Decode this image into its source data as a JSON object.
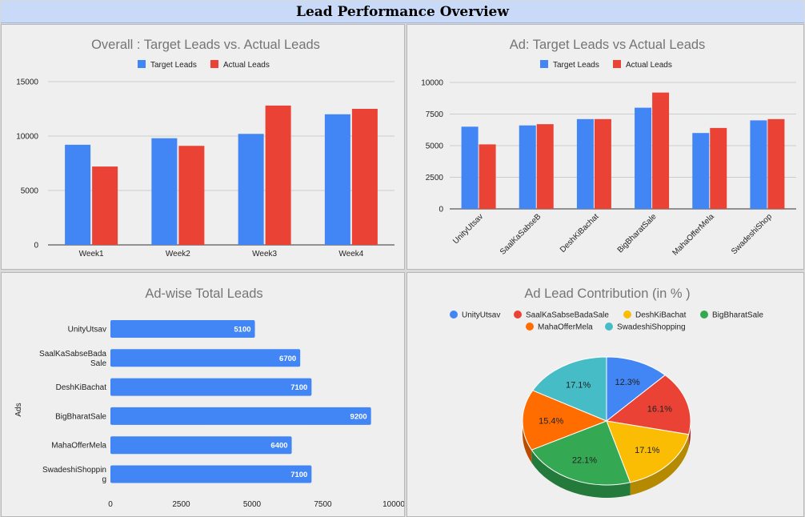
{
  "header": {
    "title": "Lead Performance Overview"
  },
  "colors": {
    "target": "#4285f4",
    "actual": "#ea4335",
    "hbar": "#4285f4",
    "pie": [
      "#4285f4",
      "#ea4335",
      "#fbbc04",
      "#34a853",
      "#ff6d01",
      "#46bdc6"
    ],
    "pie_dark": [
      "#2a5bb0",
      "#a82e25",
      "#b58900",
      "#237a3b",
      "#b84c00",
      "#2f8a91"
    ]
  },
  "chart_data": [
    {
      "id": "overall",
      "type": "bar",
      "title": "Overall : Target Leads vs. Actual Leads",
      "categories": [
        "Week1",
        "Week2",
        "Week3",
        "Week4"
      ],
      "series": [
        {
          "name": "Target Leads",
          "values": [
            9200,
            9800,
            10200,
            12000
          ]
        },
        {
          "name": "Actual Leads",
          "values": [
            7200,
            9100,
            12800,
            12500
          ]
        }
      ],
      "yticks": [
        "0",
        "5000",
        "10000",
        "15000"
      ],
      "ylim": [
        0,
        15000
      ],
      "legend": "top",
      "grid": true
    },
    {
      "id": "ad",
      "type": "bar",
      "title": "Ad: Target Leads vs Actual Leads",
      "categories": [
        "UnityUtsav",
        "SaalKaSabseB",
        "DeshKiBachat",
        "BigBharatSale",
        "MahaOfferMela",
        "SwadeshiShop"
      ],
      "series": [
        {
          "name": "Target Leads",
          "values": [
            6500,
            6600,
            7100,
            8000,
            6000,
            7000
          ]
        },
        {
          "name": "Actual Leads",
          "values": [
            5100,
            6700,
            7100,
            9200,
            6400,
            7100
          ]
        }
      ],
      "yticks": [
        "0",
        "2500",
        "5000",
        "7500",
        "10000"
      ],
      "ylim": [
        0,
        10000
      ],
      "legend": "top",
      "grid": true
    },
    {
      "id": "adwise",
      "type": "bar",
      "orientation": "horizontal",
      "title": "Ad-wise Total Leads",
      "ylabel": "Ads",
      "categories": [
        [
          "UnityUtsav"
        ],
        [
          "SaalKaSabseBada",
          "Sale"
        ],
        [
          "DeshKiBachat"
        ],
        [
          "BigBharatSale"
        ],
        [
          "MahaOfferMela"
        ],
        [
          "SwadeshiShoppin",
          "g"
        ]
      ],
      "values": [
        5100,
        6700,
        7100,
        9200,
        6400,
        7100
      ],
      "data_labels": [
        "5100",
        "6700",
        "7100",
        "9200",
        "6400",
        "7100"
      ],
      "xticks": [
        "0",
        "2500",
        "5000",
        "7500",
        "10000"
      ],
      "xlim": [
        0,
        10000
      ],
      "grid": false
    },
    {
      "id": "contribution",
      "type": "pie",
      "title": "Ad Lead Contribution (in % )",
      "labels": [
        "UnityUtsav",
        "SaalKaSabseBadaSale",
        "DeshKiBachat",
        "BigBharatSale",
        "MahaOfferMela",
        "SwadeshiShopping"
      ],
      "values": [
        12.3,
        16.1,
        17.1,
        22.1,
        15.4,
        17.1
      ],
      "data_labels": [
        "12.3%",
        "16.1%",
        "17.1%",
        "22.1%",
        "15.4%",
        "17.1%"
      ],
      "legend": "top"
    }
  ]
}
